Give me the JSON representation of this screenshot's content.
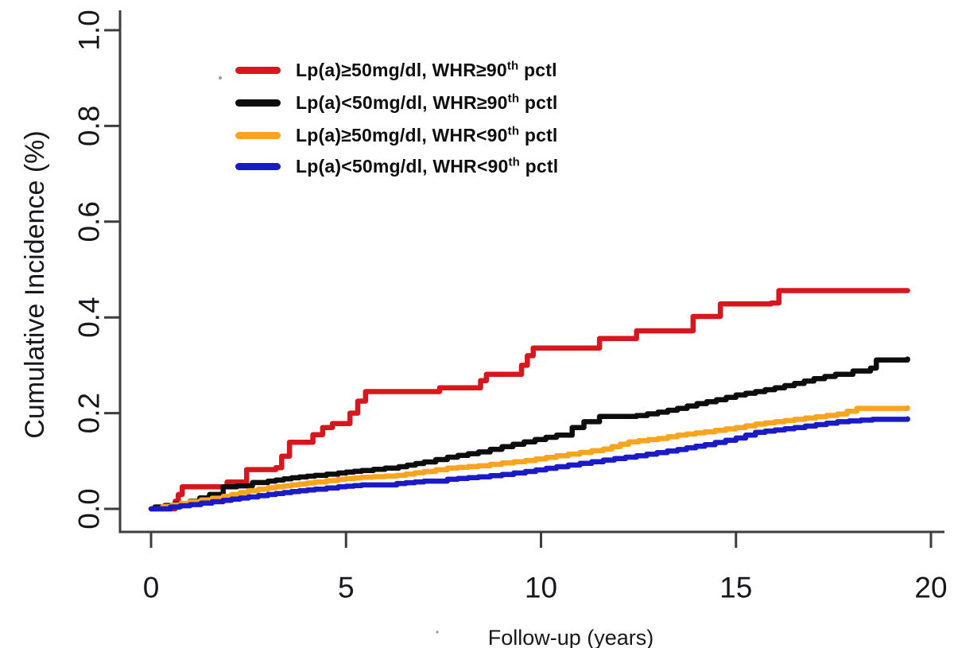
{
  "figure": {
    "type_note": "cumulative incidence step plot",
    "background": "#ffffff"
  },
  "chart_data": {
    "type": "line",
    "subtype": "step-cumulative-incidence",
    "title": "",
    "xlabel": "Follow-up (years)",
    "ylabel": "Cumulative Incidence (%)",
    "xlim": [
      0,
      20
    ],
    "ylim": [
      0,
      1.0
    ],
    "grid": false,
    "legend_position": "upper-left-inside",
    "xticks": [
      {
        "label": "0",
        "value": 0
      },
      {
        "label": "5",
        "value": 5
      },
      {
        "label": "10",
        "value": 10
      },
      {
        "label": "15",
        "value": 15
      },
      {
        "label": "20",
        "value": 20
      }
    ],
    "yticks": [
      {
        "label": "0.0",
        "value": 0.0
      },
      {
        "label": "0.2",
        "value": 0.2
      },
      {
        "label": "0.4",
        "value": 0.4
      },
      {
        "label": "0.6",
        "value": 0.6
      },
      {
        "label": "0.8",
        "value": 0.8
      },
      {
        "label": "1.0",
        "value": 1.0
      }
    ],
    "series": [
      {
        "label": "Lp(a)≥50mg/dl, WHR≥90",
        "label_sup": "th",
        "label_tail": " pctl",
        "color": "#d8161e",
        "points": [
          [
            0.0,
            0.0
          ],
          [
            0.55,
            0.0
          ],
          [
            0.62,
            0.016
          ],
          [
            0.7,
            0.03
          ],
          [
            0.8,
            0.046
          ],
          [
            1.85,
            0.046
          ],
          [
            1.95,
            0.056
          ],
          [
            2.3,
            0.056
          ],
          [
            2.45,
            0.082
          ],
          [
            3.2,
            0.086
          ],
          [
            3.35,
            0.11
          ],
          [
            3.55,
            0.139
          ],
          [
            3.95,
            0.139
          ],
          [
            4.15,
            0.155
          ],
          [
            4.4,
            0.17
          ],
          [
            4.65,
            0.178
          ],
          [
            4.9,
            0.178
          ],
          [
            5.1,
            0.2
          ],
          [
            5.3,
            0.225
          ],
          [
            5.5,
            0.245
          ],
          [
            7.3,
            0.245
          ],
          [
            7.4,
            0.253
          ],
          [
            8.3,
            0.253
          ],
          [
            8.45,
            0.268
          ],
          [
            8.6,
            0.281
          ],
          [
            9.35,
            0.281
          ],
          [
            9.5,
            0.3
          ],
          [
            9.65,
            0.32
          ],
          [
            9.8,
            0.336
          ],
          [
            11.3,
            0.336
          ],
          [
            11.5,
            0.356
          ],
          [
            12.35,
            0.356
          ],
          [
            12.45,
            0.372
          ],
          [
            13.7,
            0.372
          ],
          [
            13.9,
            0.402
          ],
          [
            14.45,
            0.402
          ],
          [
            14.6,
            0.428
          ],
          [
            15.9,
            0.43
          ],
          [
            16.1,
            0.456
          ],
          [
            19.4,
            0.456
          ]
        ]
      },
      {
        "label": "Lp(a)<50mg/dl, WHR≥90",
        "label_sup": "th",
        "label_tail": " pctl",
        "color": "#0d0d0d",
        "points": [
          [
            0.0,
            0.0
          ],
          [
            0.1,
            0.004
          ],
          [
            0.6,
            0.01
          ],
          [
            1.0,
            0.016
          ],
          [
            1.5,
            0.03
          ],
          [
            1.85,
            0.046
          ],
          [
            2.2,
            0.048
          ],
          [
            2.6,
            0.055
          ],
          [
            3.0,
            0.058
          ],
          [
            3.6,
            0.065
          ],
          [
            4.2,
            0.07
          ],
          [
            4.8,
            0.075
          ],
          [
            5.4,
            0.08
          ],
          [
            6.0,
            0.085
          ],
          [
            6.35,
            0.088
          ],
          [
            7.0,
            0.098
          ],
          [
            7.6,
            0.108
          ],
          [
            8.4,
            0.119
          ],
          [
            9.0,
            0.13
          ],
          [
            9.85,
            0.145
          ],
          [
            10.4,
            0.154
          ],
          [
            10.8,
            0.17
          ],
          [
            11.1,
            0.182
          ],
          [
            11.5,
            0.193
          ],
          [
            12.45,
            0.195
          ],
          [
            13.0,
            0.202
          ],
          [
            13.5,
            0.21
          ],
          [
            14.0,
            0.22
          ],
          [
            14.5,
            0.228
          ],
          [
            15.0,
            0.238
          ],
          [
            15.5,
            0.245
          ],
          [
            16.0,
            0.253
          ],
          [
            16.5,
            0.262
          ],
          [
            17.0,
            0.272
          ],
          [
            17.55,
            0.281
          ],
          [
            18.0,
            0.288
          ],
          [
            18.45,
            0.294
          ],
          [
            18.6,
            0.311
          ],
          [
            19.4,
            0.313
          ]
        ]
      },
      {
        "label": "Lp(a)≥50mg/dl, WHR<90",
        "label_sup": "th",
        "label_tail": " pctl",
        "color": "#f8a41e",
        "points": [
          [
            0.0,
            0.0
          ],
          [
            0.3,
            0.005
          ],
          [
            1.0,
            0.015
          ],
          [
            1.85,
            0.026
          ],
          [
            2.5,
            0.038
          ],
          [
            3.0,
            0.044
          ],
          [
            3.6,
            0.05
          ],
          [
            4.2,
            0.056
          ],
          [
            4.8,
            0.062
          ],
          [
            5.4,
            0.066
          ],
          [
            6.3,
            0.07
          ],
          [
            7.0,
            0.078
          ],
          [
            7.6,
            0.085
          ],
          [
            8.4,
            0.09
          ],
          [
            9.0,
            0.096
          ],
          [
            9.6,
            0.101
          ],
          [
            10.4,
            0.111
          ],
          [
            11.0,
            0.118
          ],
          [
            11.6,
            0.125
          ],
          [
            12.25,
            0.14
          ],
          [
            13.0,
            0.147
          ],
          [
            13.5,
            0.154
          ],
          [
            14.2,
            0.161
          ],
          [
            15.0,
            0.17
          ],
          [
            15.5,
            0.177
          ],
          [
            16.5,
            0.187
          ],
          [
            17.6,
            0.198
          ],
          [
            18.1,
            0.21
          ],
          [
            19.4,
            0.211
          ]
        ]
      },
      {
        "label": "Lp(a)<50mg/dl, WHR<90",
        "label_sup": "th",
        "label_tail": " pctl",
        "color": "#1a1ac6",
        "points": [
          [
            0.0,
            0.0
          ],
          [
            0.5,
            0.004
          ],
          [
            1.0,
            0.009
          ],
          [
            1.85,
            0.018
          ],
          [
            2.5,
            0.025
          ],
          [
            3.0,
            0.03
          ],
          [
            3.6,
            0.036
          ],
          [
            4.2,
            0.041
          ],
          [
            4.8,
            0.046
          ],
          [
            5.4,
            0.05
          ],
          [
            6.3,
            0.053
          ],
          [
            7.0,
            0.058
          ],
          [
            7.6,
            0.062
          ],
          [
            8.4,
            0.067
          ],
          [
            9.0,
            0.072
          ],
          [
            9.6,
            0.078
          ],
          [
            10.4,
            0.088
          ],
          [
            11.0,
            0.095
          ],
          [
            11.6,
            0.102
          ],
          [
            12.45,
            0.111
          ],
          [
            13.5,
            0.124
          ],
          [
            14.2,
            0.134
          ],
          [
            15.0,
            0.148
          ],
          [
            15.5,
            0.16
          ],
          [
            16.5,
            0.17
          ],
          [
            17.6,
            0.182
          ],
          [
            18.5,
            0.187
          ],
          [
            19.4,
            0.188
          ]
        ]
      }
    ]
  }
}
